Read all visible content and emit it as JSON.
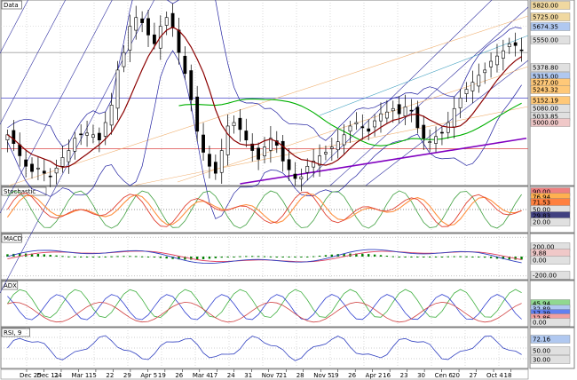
{
  "chart_data": [
    {
      "panel": "price",
      "type": "candlestick",
      "title": "Data",
      "price_labels": [
        "5820.00",
        "5725.00",
        "5674.35",
        "5550.00",
        "5378.80",
        "5315.00",
        "5277.00",
        "5243.32",
        "5152.19",
        "5080.00",
        "5033.85",
        "5000.00"
      ],
      "label_colors": [
        "#f0d8a0",
        "#f0d8a0",
        "#b0c8f0",
        "#e0e0e0",
        "#e0e0e0",
        "#b0c8f0",
        "#ffc878",
        "#ffc878",
        "#ffc878",
        "#e0e0e0",
        "#e0e0e0",
        "#f0c8c8"
      ],
      "gridlines": [
        5550,
        5000
      ],
      "ylim": [
        4800,
        5840
      ],
      "close": [
        5080,
        5030,
        4960,
        4900,
        4870,
        4890,
        4860,
        4840,
        4890,
        4950,
        4990,
        5060,
        5080,
        5090,
        5080,
        5050,
        5150,
        5250,
        5450,
        5550,
        5700,
        5750,
        5720,
        5650,
        5600,
        5700,
        5750,
        5690,
        5550,
        5430,
        5280,
        5100,
        4980,
        4900,
        4860,
        4990,
        5130,
        5150,
        5110,
        5050,
        4990,
        4940,
        5010,
        5060,
        5020,
        4930,
        4880,
        4830,
        4840,
        4900,
        4930,
        4960,
        4980,
        5010,
        5040,
        5080,
        5130,
        5150,
        5120,
        5100,
        5160,
        5200,
        5210,
        5230,
        5200,
        5240,
        5220,
        5120,
        5060,
        5040,
        5070,
        5090,
        5150,
        5230,
        5290,
        5340,
        5380,
        5420,
        5450,
        5500,
        5530,
        5560,
        5600,
        5590,
        5560
      ],
      "series": [
        {
          "name": "ma-short",
          "color": "#8b0000"
        },
        {
          "name": "ma-long",
          "color": "#00b000"
        },
        {
          "name": "trend",
          "color": "#8000c0"
        }
      ]
    },
    {
      "panel": "stochastic",
      "type": "line",
      "title": "Stochastic",
      "price_labels": [
        "90.00",
        "76.94",
        "71.53",
        "50.00",
        "29.83",
        "20.00"
      ],
      "label_colors": [
        "#f08080",
        "#ffb050",
        "#ff8040",
        "#e0e0e0",
        "#404080",
        "#e0e0e0"
      ],
      "ylim": [
        0,
        100
      ],
      "gridlines": [
        50
      ]
    },
    {
      "panel": "macd",
      "type": "line",
      "title": "MACD",
      "price_labels": [
        "200.00",
        "9.88",
        "0.00",
        "-200.00"
      ],
      "label_colors": [
        "#e0e0e0",
        "#f0c8c8",
        "#e0e0e0",
        "#e0e0e0"
      ],
      "ylim": [
        -220,
        220
      ],
      "gridlines": [
        200,
        0,
        -200
      ]
    },
    {
      "panel": "adx",
      "type": "line",
      "title": "ADX",
      "price_labels": [
        "45.94",
        "32.89",
        "17.39",
        "12.86",
        "0.00"
      ],
      "label_colors": [
        "#90d890",
        "#b0c8f0",
        "#6080f0",
        "#f0a0a0",
        "#e0e0e0"
      ],
      "ylim": [
        0,
        60
      ]
    },
    {
      "panel": "rsi",
      "type": "line",
      "title": "RSI, 9",
      "price_labels": [
        "72.16",
        "50.00",
        "30.00"
      ],
      "label_colors": [
        "#b0c8f0",
        "#e0e0e0",
        "#e0e0e0"
      ],
      "ylim": [
        15,
        85
      ],
      "gridlines": [
        70,
        50,
        30
      ]
    }
  ],
  "x_axis": {
    "ticks": [
      "Dec 25",
      "Dec 11",
      "24",
      "Mar 1",
      "15",
      "22",
      "29",
      "Apr 5",
      "19",
      "26",
      "Mar 4",
      "17",
      "24",
      "31",
      "Nov 7",
      "21",
      "28",
      "Nov 5",
      "19",
      "26",
      "Apr 2",
      "16",
      "23",
      "30",
      "Cen 6",
      "20",
      "27",
      "Oct 4",
      "18"
    ]
  }
}
